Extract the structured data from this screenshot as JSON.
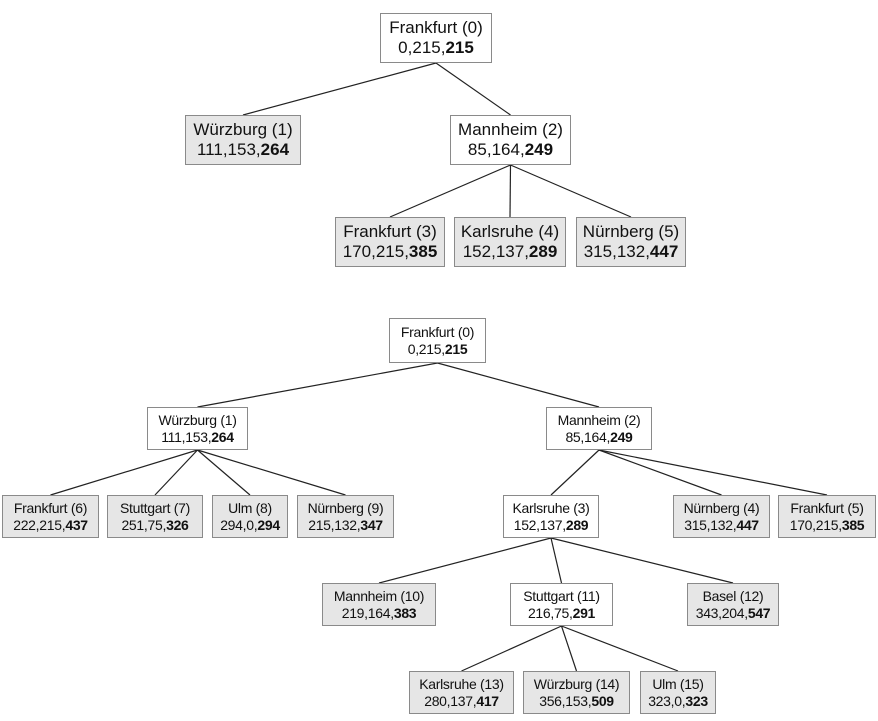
{
  "colors": {
    "leaf_fill": "#e6e6e6",
    "inner_fill": "#ffffff",
    "border": "#8a8a8a",
    "edge": "#222222"
  },
  "trees": [
    {
      "nodes": [
        {
          "city": "Frankfurt",
          "id": "0",
          "g": "0",
          "h": "215",
          "f": "215",
          "leaf": false,
          "parent": null
        },
        {
          "city": "Würzburg",
          "id": "1",
          "g": "111",
          "h": "153",
          "f": "264",
          "leaf": true,
          "parent": 0
        },
        {
          "city": "Mannheim",
          "id": "2",
          "g": "85",
          "h": "164",
          "f": "249",
          "leaf": false,
          "parent": 0
        },
        {
          "city": "Frankfurt",
          "id": "3",
          "g": "170",
          "h": "215",
          "f": "385",
          "leaf": true,
          "parent": 2
        },
        {
          "city": "Karlsruhe",
          "id": "4",
          "g": "152",
          "h": "137",
          "f": "289",
          "leaf": true,
          "parent": 2
        },
        {
          "city": "Nürnberg",
          "id": "5",
          "g": "315",
          "h": "132",
          "f": "447",
          "leaf": true,
          "parent": 2
        }
      ]
    },
    {
      "nodes": [
        {
          "city": "Frankfurt",
          "id": "0",
          "g": "0",
          "h": "215",
          "f": "215",
          "leaf": false,
          "parent": null
        },
        {
          "city": "Würzburg",
          "id": "1",
          "g": "111",
          "h": "153",
          "f": "264",
          "leaf": false,
          "parent": 0
        },
        {
          "city": "Mannheim",
          "id": "2",
          "g": "85",
          "h": "164",
          "f": "249",
          "leaf": false,
          "parent": 0
        },
        {
          "city": "Frankfurt",
          "id": "6",
          "g": "222",
          "h": "215",
          "f": "437",
          "leaf": true,
          "parent": 1
        },
        {
          "city": "Stuttgart",
          "id": "7",
          "g": "251",
          "h": "75",
          "f": "326",
          "leaf": true,
          "parent": 1
        },
        {
          "city": "Ulm",
          "id": "8",
          "g": "294",
          "h": "0",
          "f": "294",
          "leaf": true,
          "parent": 1
        },
        {
          "city": "Nürnberg",
          "id": "9",
          "g": "215",
          "h": "132",
          "f": "347",
          "leaf": true,
          "parent": 1
        },
        {
          "city": "Karlsruhe",
          "id": "3",
          "g": "152",
          "h": "137",
          "f": "289",
          "leaf": false,
          "parent": 2
        },
        {
          "city": "Nürnberg",
          "id": "4",
          "g": "315",
          "h": "132",
          "f": "447",
          "leaf": true,
          "parent": 2
        },
        {
          "city": "Frankfurt",
          "id": "5",
          "g": "170",
          "h": "215",
          "f": "385",
          "leaf": true,
          "parent": 2
        },
        {
          "city": "Mannheim",
          "id": "10",
          "g": "219",
          "h": "164",
          "f": "383",
          "leaf": true,
          "parent": 7
        },
        {
          "city": "Stuttgart",
          "id": "11",
          "g": "216",
          "h": "75",
          "f": "291",
          "leaf": false,
          "parent": 7
        },
        {
          "city": "Basel",
          "id": "12",
          "g": "343",
          "h": "204",
          "f": "547",
          "leaf": true,
          "parent": 7
        },
        {
          "city": "Karlsruhe",
          "id": "13",
          "g": "280",
          "h": "137",
          "f": "417",
          "leaf": true,
          "parent": 11
        },
        {
          "city": "Würzburg",
          "id": "14",
          "g": "356",
          "h": "153",
          "f": "509",
          "leaf": true,
          "parent": 11
        },
        {
          "city": "Ulm",
          "id": "15",
          "g": "323",
          "h": "0",
          "f": "323",
          "leaf": true,
          "parent": 11
        }
      ]
    }
  ]
}
